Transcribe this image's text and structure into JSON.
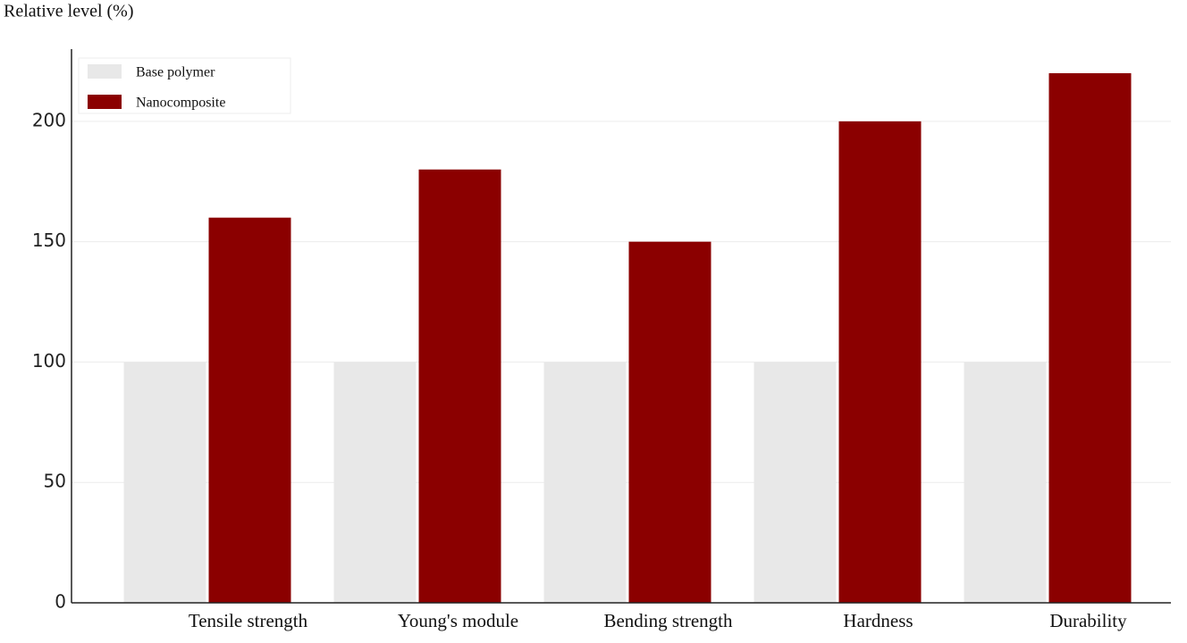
{
  "chart_data": {
    "type": "bar",
    "y_label": "Relative level (%)",
    "categories": [
      "Tensile strength",
      "Young's module",
      "Bending strength",
      "Hardness",
      "Durability"
    ],
    "series": [
      {
        "name": "Base polymer",
        "color": "#e8e8e8",
        "values": [
          100,
          100,
          100,
          100,
          100
        ]
      },
      {
        "name": "Nanocomposite",
        "color": "#8b0000",
        "values": [
          160,
          180,
          150,
          200,
          220
        ]
      }
    ],
    "ylim": [
      0,
      230
    ],
    "yticks": [
      0,
      50,
      100,
      150,
      200
    ],
    "grid": true,
    "legend": "upper-left"
  }
}
